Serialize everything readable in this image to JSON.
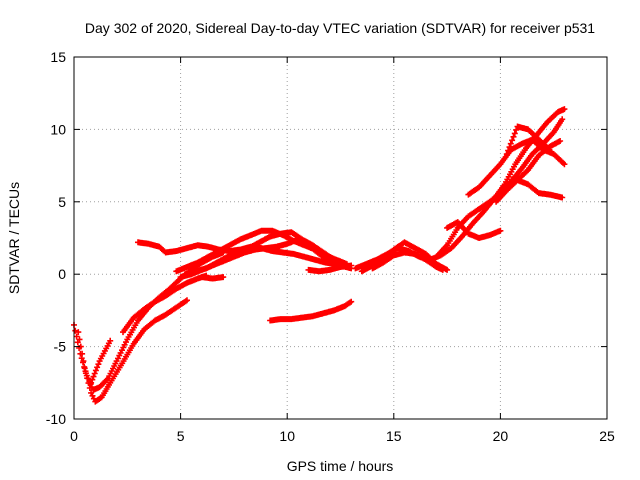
{
  "chart_data": {
    "type": "scatter",
    "title": "Day 302 of 2020, Sidereal Day-to-day VTEC variation (SDTVAR) for receiver p531",
    "xlabel": "GPS time / hours",
    "ylabel": "SDTVAR / TECUs",
    "xlim": [
      0,
      25
    ],
    "ylim": [
      -10,
      15
    ],
    "xticks": [
      0,
      5,
      10,
      15,
      20,
      25
    ],
    "yticks": [
      -10,
      -5,
      0,
      5,
      10,
      15
    ],
    "grid": true,
    "legend": "none",
    "series_color": "#ff0000",
    "series": [
      {
        "x": [
          0.0,
          0.3,
          0.6,
          0.9,
          1.2,
          1.6,
          2.0,
          2.5,
          3.0,
          3.5,
          4.0,
          4.5,
          5.0,
          5.5,
          6.0,
          6.5,
          7.0
        ],
        "y": [
          -3.5,
          -5.5,
          -7.0,
          -8.0,
          -7.8,
          -7.2,
          -6.0,
          -4.5,
          -3.2,
          -2.3,
          -1.6,
          -1.0,
          -0.3,
          0.3,
          0.8,
          1.2,
          1.5
        ]
      },
      {
        "x": [
          0.2,
          0.5,
          0.8,
          1.0,
          1.3,
          1.7,
          2.2,
          2.8,
          3.3,
          3.8,
          4.3,
          4.8,
          5.3
        ],
        "y": [
          -4.0,
          -6.5,
          -8.2,
          -8.8,
          -8.5,
          -7.5,
          -6.3,
          -4.8,
          -3.8,
          -3.2,
          -2.8,
          -2.3,
          -1.8
        ]
      },
      {
        "x": [
          0.8,
          1.2,
          1.7
        ],
        "y": [
          -7.5,
          -6.0,
          -4.6
        ]
      },
      {
        "x": [
          2.3,
          2.8,
          3.3,
          3.8,
          4.3,
          4.8,
          5.3,
          5.8,
          6.2
        ],
        "y": [
          -4.0,
          -3.0,
          -2.4,
          -1.9,
          -1.5,
          -1.0,
          -0.6,
          -0.3,
          -0.1
        ]
      },
      {
        "x": [
          3.0,
          3.5,
          4.0,
          4.3,
          4.8,
          5.3,
          5.8,
          6.3,
          6.8,
          7.3,
          7.8,
          8.3,
          8.8,
          9.3,
          9.8,
          10.3,
          10.8,
          11.3,
          11.8,
          12.3,
          12.8
        ],
        "y": [
          2.2,
          2.1,
          1.9,
          1.5,
          1.6,
          1.8,
          2.0,
          1.9,
          1.7,
          1.6,
          1.7,
          1.9,
          1.8,
          1.6,
          1.5,
          1.4,
          1.2,
          1.0,
          0.8,
          0.7,
          0.6
        ]
      },
      {
        "x": [
          4.8,
          5.3,
          5.8,
          6.3,
          6.8,
          7.3,
          7.8,
          8.3,
          8.8,
          9.3,
          9.8,
          10.3,
          10.8,
          11.3,
          11.8,
          12.3,
          12.8
        ],
        "y": [
          0.2,
          0.5,
          0.8,
          1.2,
          1.6,
          2.0,
          2.4,
          2.7,
          3.0,
          3.0,
          2.7,
          2.3,
          2.0,
          1.7,
          1.3,
          1.0,
          0.7
        ]
      },
      {
        "x": [
          5.2,
          5.7,
          6.2,
          6.7,
          7.2,
          7.7,
          8.2,
          8.7,
          9.2,
          9.7,
          10.2,
          10.7,
          11.2,
          11.7,
          12.2,
          12.7
        ],
        "y": [
          0.0,
          0.2,
          0.4,
          0.8,
          1.2,
          1.5,
          1.8,
          2.2,
          2.6,
          2.8,
          2.9,
          2.4,
          2.0,
          1.5,
          1.0,
          0.7
        ]
      },
      {
        "x": [
          5.0,
          5.5,
          6.0,
          6.5,
          7.0,
          7.5,
          8.0,
          8.5,
          9.0,
          9.5,
          10.0,
          10.5,
          11.0,
          11.5,
          12.0,
          12.5,
          13.0
        ],
        "y": [
          -0.2,
          0.0,
          0.3,
          0.6,
          0.9,
          1.2,
          1.5,
          1.7,
          1.8,
          1.9,
          2.1,
          2.4,
          2.0,
          1.4,
          0.9,
          0.6,
          0.4
        ]
      },
      {
        "x": [
          6.0,
          6.5,
          7.0
        ],
        "y": [
          -0.2,
          -0.3,
          -0.2
        ]
      },
      {
        "x": [
          11.0,
          11.5,
          12.0,
          12.5,
          13.0
        ],
        "y": [
          0.3,
          0.2,
          0.3,
          0.5,
          0.6
        ]
      },
      {
        "x": [
          9.2,
          9.7,
          10.2,
          10.7,
          11.2,
          11.7,
          12.2,
          12.7,
          13.0
        ],
        "y": [
          -3.2,
          -3.1,
          -3.1,
          -3.0,
          -2.9,
          -2.7,
          -2.5,
          -2.2,
          -1.9
        ]
      },
      {
        "x": [
          13.2,
          13.7,
          14.2,
          14.7,
          15.2,
          15.7,
          16.2,
          16.7,
          17.2,
          17.7,
          18.2,
          18.7,
          19.2,
          19.7,
          20.2,
          20.7,
          21.2,
          21.7,
          22.2,
          22.7,
          23.0
        ],
        "y": [
          0.4,
          0.7,
          1.0,
          1.4,
          1.8,
          1.6,
          1.2,
          1.0,
          1.3,
          1.8,
          2.6,
          3.5,
          4.3,
          5.2,
          6.2,
          7.6,
          8.7,
          9.6,
          10.5,
          11.2,
          11.4
        ]
      },
      {
        "x": [
          13.5,
          14.0,
          14.5,
          15.0,
          15.5,
          16.0,
          16.5,
          17.0,
          17.5
        ],
        "y": [
          0.2,
          0.6,
          1.1,
          1.7,
          2.2,
          1.8,
          1.4,
          0.7,
          0.3
        ]
      },
      {
        "x": [
          14.0,
          14.5,
          15.0,
          15.5,
          16.0,
          16.5,
          17.0,
          17.3
        ],
        "y": [
          0.4,
          0.8,
          1.3,
          1.5,
          1.4,
          1.0,
          0.5,
          0.3
        ]
      },
      {
        "x": [
          17.0,
          17.5,
          18.0,
          18.5,
          19.0,
          19.5,
          20.0,
          20.5,
          21.0,
          21.5,
          22.0,
          22.5,
          22.9
        ],
        "y": [
          1.2,
          2.0,
          3.2,
          4.0,
          4.5,
          5.0,
          5.6,
          6.4,
          7.3,
          8.3,
          9.0,
          9.8,
          10.7
        ]
      },
      {
        "x": [
          18.5,
          19.0,
          19.5,
          20.0,
          20.5,
          21.0,
          21.5,
          22.0,
          22.5,
          23.0
        ],
        "y": [
          5.5,
          6.0,
          6.8,
          7.6,
          8.6,
          9.0,
          9.3,
          8.6,
          8.3,
          7.6
        ]
      },
      {
        "x": [
          17.5,
          18.0,
          18.5,
          19.0,
          19.5,
          20.0
        ],
        "y": [
          3.2,
          3.6,
          2.8,
          2.5,
          2.7,
          3.0
        ]
      },
      {
        "x": [
          19.8,
          20.3,
          20.8,
          21.3,
          21.8,
          22.3,
          22.9
        ],
        "y": [
          5.0,
          5.8,
          6.5,
          6.2,
          5.6,
          5.5,
          5.3
        ]
      },
      {
        "x": [
          20.8,
          21.3,
          21.8,
          22.3,
          22.8
        ],
        "y": [
          6.5,
          7.2,
          8.2,
          8.8,
          9.2
        ]
      },
      {
        "x": [
          20.3,
          20.8,
          21.3,
          21.8,
          22.3
        ],
        "y": [
          8.3,
          10.2,
          10.0,
          9.3,
          8.6
        ]
      }
    ]
  }
}
